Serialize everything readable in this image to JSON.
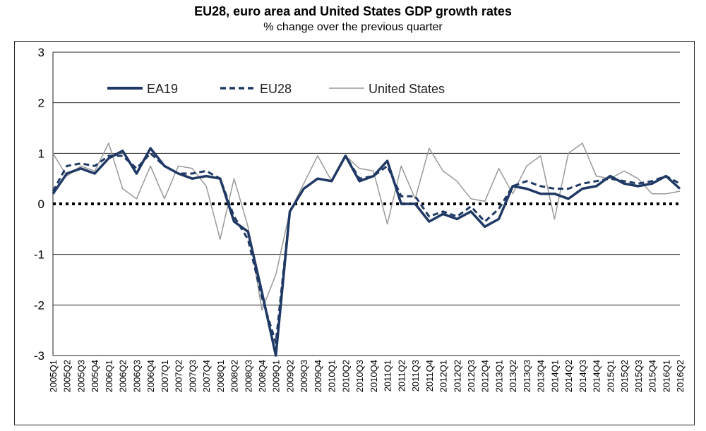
{
  "chart_data": {
    "type": "line",
    "title": "EU28, euro area and United States GDP growth rates",
    "subtitle": "% change over the previous quarter",
    "xlabel": "",
    "ylabel": "",
    "ylim": [
      -3,
      3
    ],
    "yticks": [
      "3",
      "2",
      "1",
      "0",
      "-1",
      "-2",
      "-3"
    ],
    "grid": true,
    "legend_position": "top-left",
    "categories": [
      "2005Q1",
      "2005Q2",
      "2005Q3",
      "2005Q4",
      "2006Q1",
      "2006Q2",
      "2006Q3",
      "2006Q4",
      "2007Q1",
      "2007Q2",
      "2007Q3",
      "2007Q4",
      "2008Q1",
      "2008Q2",
      "2008Q3",
      "2008Q4",
      "2009Q1",
      "2009Q2",
      "2009Q3",
      "2009Q4",
      "2010Q1",
      "2010Q2",
      "2010Q3",
      "2010Q4",
      "2011Q1",
      "2011Q2",
      "2011Q3",
      "2011Q4",
      "2012Q1",
      "2012Q2",
      "2012Q3",
      "2012Q4",
      "2013Q1",
      "2013Q2",
      "2013Q3",
      "2013Q4",
      "2014Q1",
      "2014Q2",
      "2014Q3",
      "2014Q4",
      "2015Q1",
      "2015Q2",
      "2015Q3",
      "2015Q4",
      "2016Q1",
      "2016Q2"
    ],
    "series": [
      {
        "name": "EA19",
        "color": "#1f3864",
        "style": "solid-thick",
        "values": [
          0.2,
          0.6,
          0.7,
          0.6,
          0.9,
          1.05,
          0.6,
          1.1,
          0.75,
          0.6,
          0.5,
          0.55,
          0.5,
          -0.35,
          -0.55,
          -1.75,
          -3.0,
          -0.15,
          0.3,
          0.5,
          0.45,
          0.95,
          0.45,
          0.55,
          0.85,
          0.0,
          0.0,
          -0.35,
          -0.2,
          -0.3,
          -0.15,
          -0.45,
          -0.3,
          0.35,
          0.3,
          0.2,
          0.2,
          0.1,
          0.3,
          0.35,
          0.55,
          0.4,
          0.35,
          0.4,
          0.55,
          0.3
        ]
      },
      {
        "name": "EU28",
        "color": "#1f3864",
        "style": "dashed",
        "values": [
          0.25,
          0.75,
          0.8,
          0.75,
          0.95,
          0.95,
          0.7,
          1.0,
          0.75,
          0.6,
          0.6,
          0.65,
          0.5,
          -0.25,
          -0.7,
          -1.85,
          -2.75,
          -0.15,
          0.3,
          0.5,
          0.45,
          0.95,
          0.5,
          0.55,
          0.75,
          0.15,
          0.15,
          -0.25,
          -0.15,
          -0.25,
          -0.05,
          -0.35,
          -0.1,
          0.35,
          0.45,
          0.35,
          0.3,
          0.3,
          0.4,
          0.45,
          0.5,
          0.45,
          0.4,
          0.45,
          0.55,
          0.4
        ]
      },
      {
        "name": "United States",
        "color": "#999999",
        "style": "solid-thin",
        "values": [
          1.0,
          0.55,
          0.75,
          0.65,
          1.2,
          0.3,
          0.1,
          0.75,
          0.1,
          0.75,
          0.7,
          0.35,
          -0.7,
          0.5,
          -0.45,
          -2.1,
          -1.4,
          -0.15,
          0.4,
          0.95,
          0.45,
          0.95,
          0.7,
          0.65,
          -0.4,
          0.75,
          0.1,
          1.1,
          0.65,
          0.45,
          0.1,
          0.05,
          0.7,
          0.2,
          0.75,
          0.95,
          -0.3,
          1.0,
          1.2,
          0.55,
          0.5,
          0.65,
          0.5,
          0.2,
          0.2,
          0.25
        ]
      }
    ]
  }
}
